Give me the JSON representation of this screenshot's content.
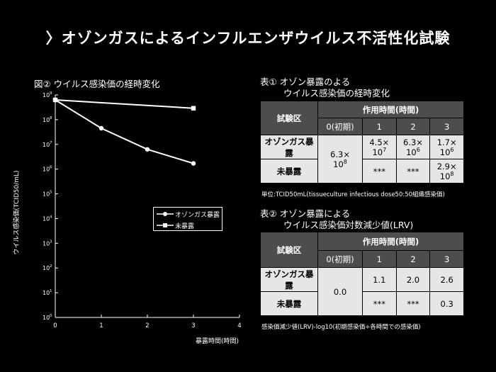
{
  "page_title": "〉オゾンガスによるインフルエンザウイルス不活性化試験",
  "chart_data": {
    "type": "line",
    "title": "図② ウイルス感染価の経時変化",
    "xlabel": "暴露時間(時間)",
    "ylabel": "ウイルス感染価(TCID50/mL)",
    "x_ticks": [
      "0",
      "1",
      "2",
      "3",
      "4"
    ],
    "y_tick_bases": [
      "10",
      "10",
      "10",
      "10",
      "10",
      "10",
      "10",
      "10",
      "10",
      "10"
    ],
    "y_tick_exponents": [
      "0",
      "1",
      "2",
      "3",
      "4",
      "5",
      "6",
      "7",
      "8",
      "9"
    ],
    "xlim": [
      0,
      4
    ],
    "ylim": [
      1,
      1000000000
    ],
    "y_scale": "log",
    "legend_position": "center-right",
    "series": [
      {
        "name": "オゾンガス暴露",
        "marker": "circle",
        "x": [
          0,
          1,
          2,
          3
        ],
        "y": [
          630000000,
          45000000,
          6300000,
          1700000
        ]
      },
      {
        "name": "未暴露",
        "marker": "square",
        "x": [
          0,
          3
        ],
        "y": [
          630000000,
          290000000
        ]
      }
    ]
  },
  "table1": {
    "title_line1": "表① オゾン暴露のよる",
    "title_line2": "ウイルス感染価の経時変化",
    "header_group": "試験区",
    "header_time": "作用時間(時間)",
    "time_cols": [
      "0(初期)",
      "1",
      "2",
      "3"
    ],
    "rows": [
      {
        "label": "オゾンガス暴露",
        "v1_mant": "4.5×",
        "v1_base": "10",
        "v1_exp": "7",
        "v2_mant": "6.3×",
        "v2_base": "10",
        "v2_exp": "6",
        "v3_mant": "1.7×",
        "v3_base": "10",
        "v3_exp": "6"
      },
      {
        "label": "未暴露",
        "v1": "***",
        "v2": "***",
        "v3_mant": "2.9×",
        "v3_base": "10",
        "v3_exp": "8"
      }
    ],
    "initial_mant": "6.3×",
    "initial_base": "10",
    "initial_exp": "8",
    "note": "単位:TCID50mL(tissueculture infectious dose50:50組織感染価)"
  },
  "table2": {
    "title_line1": "表② オゾン暴露による",
    "title_line2": "ウイルス感染価対数減少値(LRV)",
    "header_group": "試験区",
    "header_time": "作用時間(時間)",
    "time_cols": [
      "0(初期)",
      "1",
      "2",
      "3"
    ],
    "initial": "0.0",
    "rows": [
      {
        "label": "オゾンガス暴露",
        "v1": "1.1",
        "v2": "2.0",
        "v3": "2.6"
      },
      {
        "label": "未暴露",
        "v1": "***",
        "v2": "***",
        "v3": "0.3"
      }
    ],
    "note": "感染価減少値(LRV)-log10(初期感染価÷各時間での感染価)"
  },
  "colors": {
    "background": "#000000",
    "foreground": "#ffffff",
    "table_header": "#4d4d4d",
    "table_cell": "#e6e6e6"
  }
}
